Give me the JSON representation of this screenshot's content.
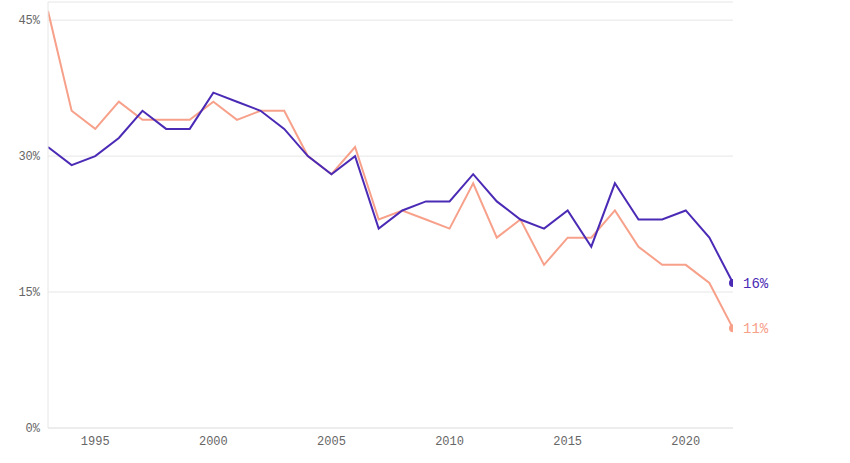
{
  "chart_data": {
    "type": "line",
    "x": [
      1993,
      1994,
      1995,
      1996,
      1997,
      1998,
      1999,
      2000,
      2001,
      2002,
      2003,
      2004,
      2005,
      2006,
      2007,
      2008,
      2009,
      2010,
      2011,
      2012,
      2013,
      2014,
      2015,
      2016,
      2017,
      2018,
      2019,
      2020,
      2021,
      2022
    ],
    "series": [
      {
        "color": "#4b2bb5",
        "values": [
          31,
          29,
          30,
          32,
          35,
          33,
          33,
          37,
          36,
          35,
          33,
          30,
          28,
          30,
          22,
          24,
          25,
          25,
          28,
          25,
          23,
          22,
          24,
          20,
          27,
          23,
          23,
          24,
          21,
          16
        ],
        "value_labels": [
          null,
          null,
          null,
          null,
          null,
          null,
          null,
          null,
          null,
          null,
          null,
          null,
          null,
          null,
          null,
          null,
          null,
          null,
          null,
          null,
          null,
          null,
          null,
          null,
          null,
          null,
          null,
          null,
          null,
          "16%"
        ]
      },
      {
        "color": "#f7a08a",
        "values": [
          46,
          35,
          33,
          36,
          34,
          34,
          34,
          36,
          34,
          35,
          35,
          30,
          28,
          31,
          23,
          24,
          23,
          22,
          27,
          21,
          23,
          18,
          21,
          21,
          24,
          20,
          18,
          18,
          16,
          11
        ],
        "value_labels": [
          null,
          null,
          null,
          null,
          null,
          null,
          null,
          null,
          null,
          null,
          null,
          null,
          null,
          null,
          null,
          null,
          null,
          null,
          null,
          null,
          null,
          null,
          null,
          null,
          null,
          null,
          null,
          null,
          null,
          "11%"
        ]
      }
    ],
    "xlim": [
      1993,
      2022
    ],
    "xticks": [
      1995,
      2000,
      2005,
      2010,
      2015,
      2020
    ],
    "ylim": [
      0,
      47
    ],
    "yticks": [
      {
        "value": 0,
        "label": "0%"
      },
      {
        "value": 15,
        "label": "15%"
      },
      {
        "value": 30,
        "label": "30%"
      },
      {
        "value": 45,
        "label": "45%"
      }
    ],
    "grid": true
  }
}
